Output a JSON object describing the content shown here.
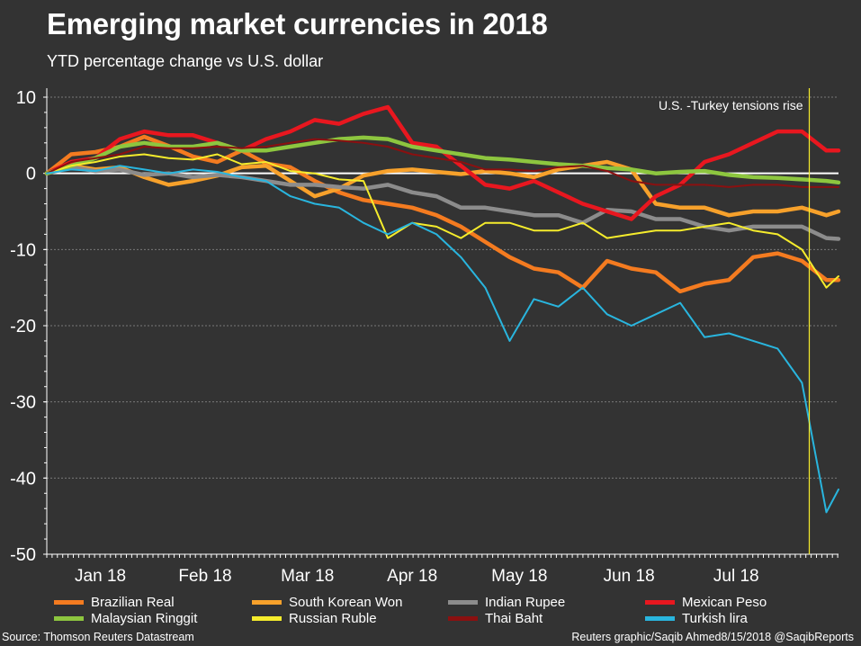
{
  "header": {
    "title": "Emerging market currencies in 2018",
    "subtitle": "YTD percentage change vs U.S. dollar"
  },
  "footer": {
    "source": "Source: Thomson Reuters Datastream",
    "credit": "Reuters graphic/Saqib Ahmed8/15/2018 @SaqibReports"
  },
  "chart_data": {
    "type": "line",
    "title": "Emerging market currencies in 2018",
    "subtitle": "YTD percentage change vs U.S. dollar",
    "xlabel": "",
    "ylabel": "",
    "ylim": [
      -50,
      10
    ],
    "yticks": [
      10,
      0,
      -10,
      -20,
      -30,
      -40,
      -50
    ],
    "xlim_weeks": [
      0,
      32.5
    ],
    "xticks": [
      {
        "label": "Jan 18",
        "week": 2.2
      },
      {
        "label": "Feb 18",
        "week": 6.5
      },
      {
        "label": "Mar 18",
        "week": 10.7
      },
      {
        "label": "Apr 18",
        "week": 15.0
      },
      {
        "label": "May 18",
        "week": 19.4
      },
      {
        "label": "Jun 18",
        "week": 23.9
      },
      {
        "label": "Jul 18",
        "week": 28.3
      }
    ],
    "grid": "horizontal-dotted",
    "zero_line": true,
    "annotation": {
      "text": "U.S. -Turkey tensions rise",
      "week": 31.3
    },
    "x_weeks": [
      0,
      1,
      2,
      3,
      4,
      5,
      6,
      7,
      8,
      9,
      10,
      11,
      12,
      13,
      14,
      15,
      16,
      17,
      18,
      19,
      20,
      21,
      22,
      23,
      24,
      25,
      26,
      27,
      28,
      29,
      30,
      31,
      32,
      32.5
    ],
    "series": [
      {
        "name": "Brazilian Real",
        "color": "#f47b20",
        "width": 4.5,
        "values": [
          0,
          2.5,
          2.8,
          3.5,
          4.8,
          3.6,
          2.2,
          1.5,
          3.0,
          1.3,
          0.8,
          -1.0,
          -2.5,
          -3.5,
          -4.0,
          -4.5,
          -5.5,
          -7.0,
          -9.0,
          -11.0,
          -12.5,
          -13.0,
          -15.0,
          -11.5,
          -12.5,
          -13.0,
          -15.5,
          -14.5,
          -14.0,
          -11.0,
          -10.5,
          -11.5,
          -14.0,
          -14.0
        ]
      },
      {
        "name": "South Korean Won",
        "color": "#f7a12b",
        "width": 4.5,
        "values": [
          0,
          1.0,
          0.5,
          0.8,
          -0.5,
          -1.5,
          -1.0,
          -0.3,
          0.8,
          1.0,
          -1.0,
          -3.0,
          -2.0,
          -0.3,
          0.3,
          0.5,
          0.2,
          -0.1,
          0.3,
          0,
          -0.5,
          0.5,
          1.0,
          1.5,
          0.5,
          -4.0,
          -4.5,
          -4.5,
          -5.5,
          -5.0,
          -5.0,
          -4.5,
          -5.5,
          -5.0
        ]
      },
      {
        "name": "Indian Rupee",
        "color": "#8c8c8c",
        "width": 4.5,
        "values": [
          0,
          0.8,
          0.3,
          0.5,
          -0.2,
          0,
          -0.5,
          -0.2,
          -0.5,
          -1.0,
          -1.5,
          -1.5,
          -1.8,
          -2.0,
          -1.5,
          -2.5,
          -3.0,
          -4.5,
          -4.5,
          -5.0,
          -5.5,
          -5.5,
          -6.5,
          -4.8,
          -5.0,
          -6.0,
          -6.0,
          -7.0,
          -7.5,
          -7.0,
          -7.0,
          -7.0,
          -8.5,
          -8.6
        ]
      },
      {
        "name": "Mexican Peso",
        "color": "#e8171f",
        "width": 4.5,
        "values": [
          0,
          1.5,
          2.0,
          4.5,
          5.5,
          5.0,
          5.0,
          4.0,
          3.0,
          4.5,
          5.5,
          7.0,
          6.5,
          7.8,
          8.7,
          4.0,
          3.5,
          1.0,
          -1.5,
          -2.0,
          -1.0,
          -2.5,
          -4.0,
          -5.0,
          -6.0,
          -3.0,
          -1.5,
          1.5,
          2.5,
          4.0,
          5.5,
          5.5,
          3.0,
          3.0
        ]
      },
      {
        "name": "Malaysian Ringgit",
        "color": "#8dc63f",
        "width": 4.5,
        "values": [
          0,
          1.0,
          2.0,
          3.5,
          4.0,
          3.5,
          3.5,
          4.0,
          3.0,
          3.0,
          3.5,
          4.0,
          4.5,
          4.7,
          4.5,
          3.5,
          3.0,
          2.5,
          2.0,
          1.8,
          1.5,
          1.2,
          1.0,
          0.7,
          0.5,
          0,
          0.2,
          0.3,
          -0.2,
          -0.5,
          -0.6,
          -0.8,
          -1.0,
          -1.2
        ]
      },
      {
        "name": "Russian Ruble",
        "color": "#f5ec2c",
        "width": 2,
        "values": [
          0,
          1.0,
          1.5,
          2.2,
          2.5,
          2.0,
          1.8,
          2.5,
          1.2,
          1.5,
          0.3,
          0,
          -0.8,
          -1.0,
          -8.5,
          -6.5,
          -7.0,
          -8.5,
          -6.5,
          -6.5,
          -7.5,
          -7.5,
          -6.5,
          -8.5,
          -8.0,
          -7.5,
          -7.5,
          -7.0,
          -6.5,
          -7.5,
          -8.0,
          -10.0,
          -15.0,
          -13.5
        ]
      },
      {
        "name": "Thai Baht",
        "color": "#8b1010",
        "width": 2,
        "values": [
          0,
          1.5,
          2.0,
          2.5,
          3.5,
          3.3,
          3.3,
          3.5,
          3.3,
          3.5,
          4.0,
          4.5,
          4.3,
          4.0,
          3.5,
          2.5,
          2.0,
          1.5,
          0.5,
          0.5,
          0.3,
          0.8,
          1.0,
          0.3,
          -1.0,
          -1.5,
          -1.5,
          -1.5,
          -1.8,
          -1.5,
          -1.5,
          -1.8,
          -1.8,
          -1.8
        ]
      },
      {
        "name": "Turkish lira",
        "color": "#29b5de",
        "width": 2,
        "values": [
          0,
          0.5,
          0.3,
          1.0,
          0.5,
          0,
          0.5,
          0.2,
          -0.5,
          -1.0,
          -3.0,
          -4.0,
          -4.5,
          -6.5,
          -8.0,
          -6.5,
          -8.0,
          -11.0,
          -15.0,
          -22.0,
          -16.5,
          -17.5,
          -15.0,
          -18.5,
          -20.0,
          -18.5,
          -17.0,
          -21.5,
          -21.0,
          -22.0,
          -23.0,
          -27.5,
          -44.5,
          -41.5
        ]
      }
    ]
  }
}
